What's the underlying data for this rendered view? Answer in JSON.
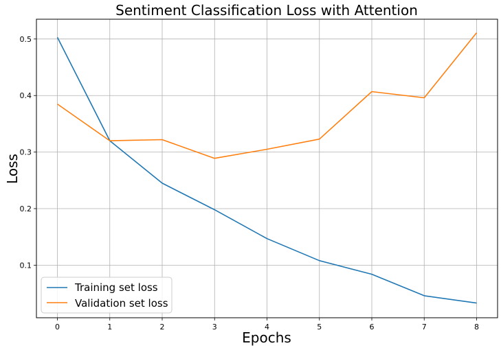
{
  "chart_data": {
    "type": "line",
    "title": "Sentiment Classification Loss with Attention",
    "xlabel": "Epochs",
    "ylabel": "Loss",
    "x": [
      0,
      1,
      2,
      3,
      4,
      5,
      6,
      7,
      8
    ],
    "xticks": [
      "0",
      "1",
      "2",
      "3",
      "4",
      "5",
      "6",
      "7",
      "8"
    ],
    "yticks": [
      "0.1",
      "0.2",
      "0.3",
      "0.4",
      "0.5"
    ],
    "xlim": [
      -0.4,
      8.4
    ],
    "ylim": [
      0.007,
      0.535
    ],
    "grid": true,
    "legend_position": "lower-left",
    "series": [
      {
        "name": "Training set loss",
        "color": "#1f77b4",
        "values": [
          0.503,
          0.32,
          0.245,
          0.198,
          0.147,
          0.108,
          0.084,
          0.046,
          0.033
        ]
      },
      {
        "name": "Validation set loss",
        "color": "#ff7f0e",
        "values": [
          0.385,
          0.32,
          0.322,
          0.289,
          0.305,
          0.323,
          0.407,
          0.396,
          0.511
        ]
      }
    ]
  }
}
